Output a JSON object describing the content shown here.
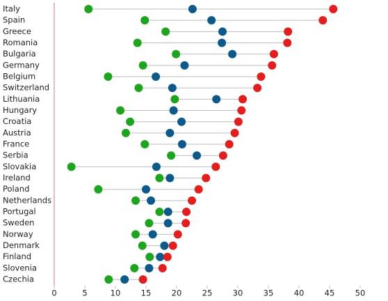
{
  "chart_data": {
    "type": "dot",
    "categories": [
      "Italy",
      "Spain",
      "Greece",
      "Romania",
      "Bulgaria",
      "Germany",
      "Belgium",
      "Switzerland",
      "Lithuania",
      "Hungary",
      "Croatia",
      "Austria",
      "France",
      "Serbia",
      "Slovakia",
      "Ireland",
      "Poland",
      "Netherlands",
      "Portugal",
      "Sweden",
      "Norway",
      "Denmark",
      "Finland",
      "Slovenia",
      "Czechia"
    ],
    "series": [
      {
        "color": "#1ea41e",
        "values": [
          5.6,
          14.8,
          18.2,
          13.6,
          19.9,
          14.5,
          8.8,
          13.8,
          19.7,
          10.8,
          12.4,
          11.7,
          14.8,
          19.1,
          2.8,
          17.2,
          7.2,
          13.3,
          17.2,
          15.5,
          13.3,
          14.4,
          15.6,
          13.1,
          8.9
        ]
      },
      {
        "color": "#0d5a8a",
        "values": [
          22.6,
          25.7,
          27.5,
          27.4,
          29.1,
          21.3,
          16.6,
          19.3,
          26.5,
          19.5,
          20.8,
          18.9,
          20.9,
          23.3,
          16.7,
          18.9,
          15.0,
          15.8,
          18.6,
          18.6,
          16.1,
          18.0,
          17.3,
          15.5,
          11.5
        ]
      },
      {
        "color": "#e21f1f",
        "values": [
          45.6,
          43.9,
          38.2,
          38.1,
          35.9,
          35.6,
          33.8,
          33.2,
          30.8,
          30.6,
          30.1,
          29.5,
          28.6,
          27.6,
          26.4,
          24.8,
          23.6,
          22.5,
          21.6,
          21.5,
          20.2,
          19.4,
          18.5,
          17.7,
          14.5
        ]
      }
    ],
    "xlim": [
      0,
      50
    ],
    "xticks": [
      0,
      5,
      10,
      15,
      20,
      25,
      30,
      35,
      40,
      45,
      50
    ]
  }
}
